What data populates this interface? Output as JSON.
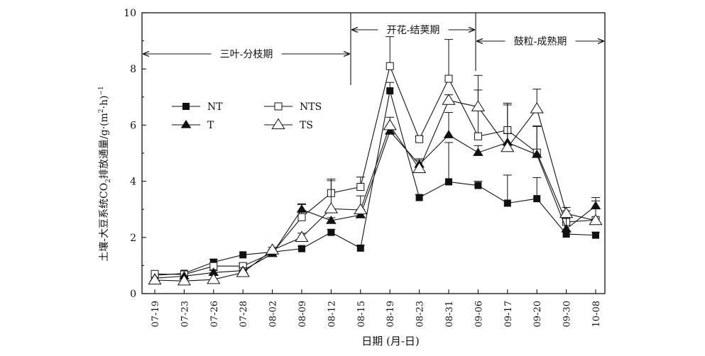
{
  "chart_data": {
    "type": "line",
    "xlabel": "日期 (月-日)",
    "ylabel_prefix": "土壤-大豆系统CO",
    "ylabel_sub2": "2",
    "ylabel_mid": "排放通量/g·(m",
    "ylabel_sup2": "2",
    "ylabel_dot": "·h)",
    "ylabel_sup": "−1",
    "ylim": [
      0,
      10
    ],
    "yticks": [
      "0",
      "2",
      "4",
      "6",
      "8",
      "10"
    ],
    "categories": [
      "07-19",
      "07-23",
      "07-26",
      "07-28",
      "08-02",
      "08-09",
      "08-12",
      "08-15",
      "08-19",
      "08-23",
      "08-31",
      "09-06",
      "09-17",
      "09-20",
      "09-30",
      "10-08"
    ],
    "series": [
      {
        "name": "NT",
        "marker": "square-filled",
        "values": [
          0.65,
          0.72,
          1.12,
          1.38,
          1.48,
          1.6,
          2.18,
          1.62,
          7.22,
          3.42,
          3.98,
          3.85,
          3.22,
          3.38,
          2.12,
          2.08
        ],
        "err": [
          0.05,
          0.05,
          0.06,
          0.06,
          0.06,
          0.08,
          0.1,
          0.1,
          0.3,
          0.1,
          1.4,
          0.15,
          1.0,
          0.75,
          0.1,
          0.1
        ]
      },
      {
        "name": "NTS",
        "marker": "square-open",
        "values": [
          0.7,
          0.68,
          0.98,
          0.98,
          1.45,
          2.72,
          3.58,
          3.8,
          8.1,
          5.5,
          7.65,
          5.6,
          5.82,
          5.02,
          2.55,
          2.62
        ],
        "err": [
          0.05,
          0.05,
          0.24,
          0.1,
          0.1,
          0.45,
          0.5,
          0.35,
          1.05,
          0.1,
          1.4,
          1.65,
          0.9,
          0.95,
          0.4,
          0.4
        ]
      },
      {
        "name": "T",
        "marker": "triangle-filled",
        "values": [
          0.55,
          0.62,
          0.75,
          0.82,
          1.42,
          3.0,
          2.6,
          2.8,
          5.78,
          4.6,
          5.65,
          5.02,
          5.38,
          4.95,
          2.3,
          3.12
        ],
        "err": [
          0.05,
          0.05,
          0.07,
          0.1,
          0.1,
          0.2,
          0.1,
          0.2,
          0.2,
          0.2,
          0.8,
          0.25,
          1.4,
          1.0,
          0.4,
          0.3
        ]
      },
      {
        "name": "TS",
        "marker": "triangle-open",
        "values": [
          0.48,
          0.45,
          0.5,
          0.75,
          1.55,
          2.0,
          3.02,
          2.98,
          5.98,
          4.45,
          6.88,
          6.65,
          5.2,
          6.58,
          2.85,
          2.6
        ],
        "err": [
          0.05,
          0.05,
          0.06,
          0.07,
          0.1,
          0.15,
          1.0,
          0.5,
          0.3,
          0.3,
          0.2,
          1.12,
          0.5,
          0.7,
          0.22,
          0.7
        ]
      }
    ],
    "phases": [
      {
        "label": "三叶-分枝期",
        "from": 0,
        "to": 7
      },
      {
        "label": "开花-结荚期",
        "from": 7,
        "to": 11
      },
      {
        "label": "鼓粒-成熟期",
        "from": 11,
        "to": 15
      }
    ],
    "legend": {
      "placement": "top-left"
    },
    "grid": false
  }
}
